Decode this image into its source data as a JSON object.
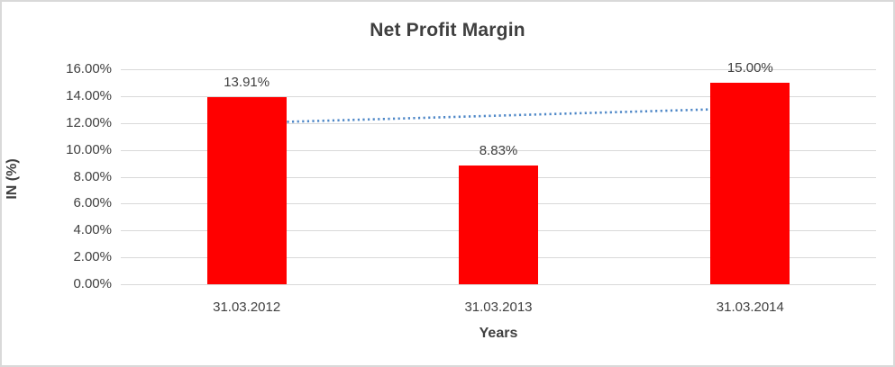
{
  "window": {
    "background_color": "#ffffff",
    "frame_border_color": "#d9d9d9"
  },
  "chart_data": {
    "type": "bar",
    "title": "Net Profit Margin",
    "xlabel": "Years",
    "ylabel": "IN (%)",
    "categories": [
      "31.03.2012",
      "31.03.2013",
      "31.03.2014"
    ],
    "values": [
      13.91,
      8.83,
      15.0
    ],
    "data_labels": [
      "13.91%",
      "8.83%",
      "15.00%"
    ],
    "ylim": [
      0,
      16
    ],
    "ytick_values": [
      0,
      2,
      4,
      6,
      8,
      10,
      12,
      14,
      16
    ],
    "ytick_labels": [
      "0.00%",
      "2.00%",
      "4.00%",
      "6.00%",
      "8.00%",
      "10.00%",
      "12.00%",
      "14.00%",
      "16.00%"
    ],
    "grid": true,
    "legend": "none",
    "bar_color": "#ff0000",
    "gridline_color": "#d9d9d9",
    "text_color": "#404040",
    "trendline": {
      "type": "linear",
      "style": "dotted",
      "color": "#4e87c7",
      "start_value": 12.0,
      "end_value": 13.1
    }
  }
}
